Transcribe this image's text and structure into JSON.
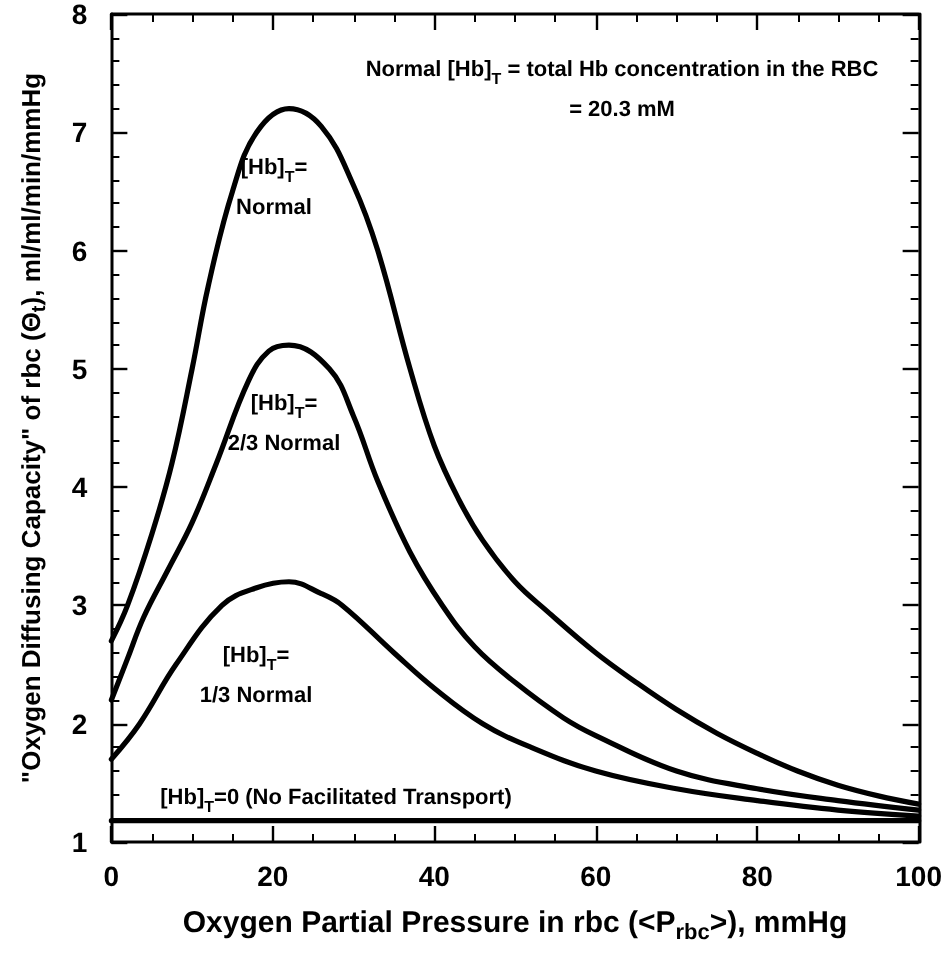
{
  "chart_data": {
    "type": "line",
    "xlabel": "Oxygen Partial Pressure in rbc (<P$_{rbc}$>), mmHg",
    "ylabel": "\"Oxygen Diffusing Capacity\" of rbc (Θ$_{t}$), ml/ml/min/mmHg",
    "xlim": [
      0,
      100
    ],
    "xticks": [
      0,
      20,
      40,
      60,
      80,
      100
    ],
    "ylim": [
      1,
      8
    ],
    "yticks": [
      1,
      2,
      3,
      4,
      5,
      6,
      7,
      8
    ],
    "marker": "none",
    "line_style": "solid",
    "grid": false,
    "series": [
      {
        "color": "#000000",
        "x": [
          0,
          2,
          5,
          7.5,
          10,
          12,
          15,
          18,
          22,
          26,
          30,
          33,
          37,
          40,
          43,
          46,
          50,
          54,
          60,
          65,
          70,
          75,
          80,
          85,
          90,
          95,
          100
        ],
        "values": [
          2.7,
          3.0,
          3.6,
          4.2,
          5.0,
          5.7,
          6.5,
          7.0,
          7.2,
          7.05,
          6.55,
          6.0,
          5.0,
          4.35,
          3.9,
          3.55,
          3.2,
          2.95,
          2.6,
          2.35,
          2.12,
          1.92,
          1.75,
          1.6,
          1.48,
          1.39,
          1.32
        ]
      },
      {
        "color": "#000000",
        "x": [
          0,
          2,
          4,
          7,
          10,
          13,
          17,
          19.5,
          22,
          27,
          30,
          33,
          37,
          41,
          45,
          50,
          56,
          60,
          70,
          80,
          90,
          100
        ],
        "values": [
          2.2,
          2.55,
          2.9,
          3.3,
          3.7,
          4.2,
          4.9,
          5.15,
          5.2,
          5.0,
          4.6,
          4.05,
          3.45,
          3.0,
          2.65,
          2.35,
          2.05,
          1.9,
          1.6,
          1.45,
          1.35,
          1.27
        ]
      },
      {
        "color": "#000000",
        "x": [
          0,
          3.5,
          8,
          13.7,
          18,
          22,
          26,
          28.6,
          35,
          40,
          46,
          52,
          60,
          70,
          80,
          90,
          100
        ],
        "values": [
          1.7,
          2.0,
          2.5,
          3.0,
          3.15,
          3.2,
          3.1,
          3.0,
          2.6,
          2.3,
          2.0,
          1.8,
          1.6,
          1.45,
          1.35,
          1.27,
          1.22
        ]
      },
      {
        "color": "#000000",
        "x": [
          0,
          100
        ],
        "values": [
          1.18,
          1.18
        ]
      }
    ],
    "annotations": [
      "Normal [Hb]$_{T}$ = total Hb concentration in the RBC\n= 20.3 mM",
      "[Hb]$_{T}$=\nNormal",
      "[Hb]$_{T}$=\n2/3 Normal",
      "[Hb]$_{T}$=\n1/3 Normal",
      "[Hb]$_{T}$=0 (No Facilitated Transport)"
    ]
  }
}
